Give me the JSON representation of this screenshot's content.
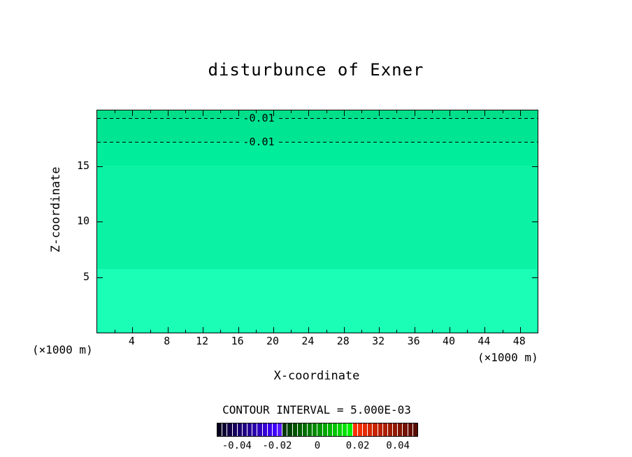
{
  "title": "disturbunce of Exner",
  "axes": {
    "x_label": "X-coordinate",
    "y_label": "Z-coordinate",
    "x_unit_left": "(×1000 m)",
    "x_unit_right": "(×1000 m)",
    "x_range": [
      0,
      50
    ],
    "y_range": [
      0,
      20
    ],
    "x_ticks": [
      4,
      8,
      12,
      16,
      20,
      24,
      28,
      32,
      36,
      40,
      44,
      48
    ],
    "x_minor_step": 2,
    "y_ticks": [
      5,
      10,
      15
    ]
  },
  "contour_interval_text": "CONTOUR INTERVAL = 5.000E-03",
  "chart_data": {
    "type": "contour",
    "title": "disturbunce of Exner",
    "xlabel": "X-coordinate (×1000 m)",
    "ylabel": "Z-coordinate (×1000 m)",
    "x_range": [
      0,
      50
    ],
    "z_range": [
      0,
      20
    ],
    "contour_interval": 0.005,
    "contour_lines": [
      {
        "value": -0.01,
        "label": "-0.01",
        "z": 19.3
      },
      {
        "value": -0.01,
        "label": "-0.01",
        "z": 17.2
      }
    ],
    "fill_bands": [
      {
        "z_from": 0,
        "z_to": 5.7,
        "approx_value": -0.001,
        "color": "#1affb5"
      },
      {
        "z_from": 5.7,
        "z_to": 15,
        "approx_value": -0.004,
        "color": "#0cf2a4"
      },
      {
        "z_from": 15,
        "z_to": 17.2,
        "approx_value": -0.006,
        "color": "#00ed9b"
      },
      {
        "z_from": 17.2,
        "z_to": 19.3,
        "approx_value": -0.009,
        "color": "#00e592"
      },
      {
        "z_from": 19.3,
        "z_to": 20,
        "approx_value": -0.012,
        "color": "#00de8a"
      }
    ],
    "colorbar": {
      "min": -0.05,
      "max": 0.05,
      "tick_labels": [
        "-0.04",
        "-0.02",
        "0",
        "0.02",
        "0.04"
      ],
      "tick_values": [
        -0.04,
        -0.02,
        0,
        0.02,
        0.04
      ],
      "cell_colors": [
        "#08001f",
        "#0d0033",
        "#120047",
        "#17005b",
        "#1c006f",
        "#210083",
        "#260097",
        "#2b00ab",
        "#3000bf",
        "#3500d3",
        "#3a00e7",
        "#4000fa",
        "#5a1aff",
        "#003800",
        "#004500",
        "#005200",
        "#006000",
        "#006e00",
        "#007c00",
        "#008a00",
        "#009800",
        "#00a700",
        "#00b500",
        "#00c400",
        "#00d300",
        "#00e200",
        "#00f100",
        "#ff3000",
        "#f22d00",
        "#e42a00",
        "#d62700",
        "#c82400",
        "#ba2100",
        "#ac1e00",
        "#9e1b00",
        "#901800",
        "#821500",
        "#741200",
        "#660f00",
        "#580c00"
      ]
    }
  }
}
